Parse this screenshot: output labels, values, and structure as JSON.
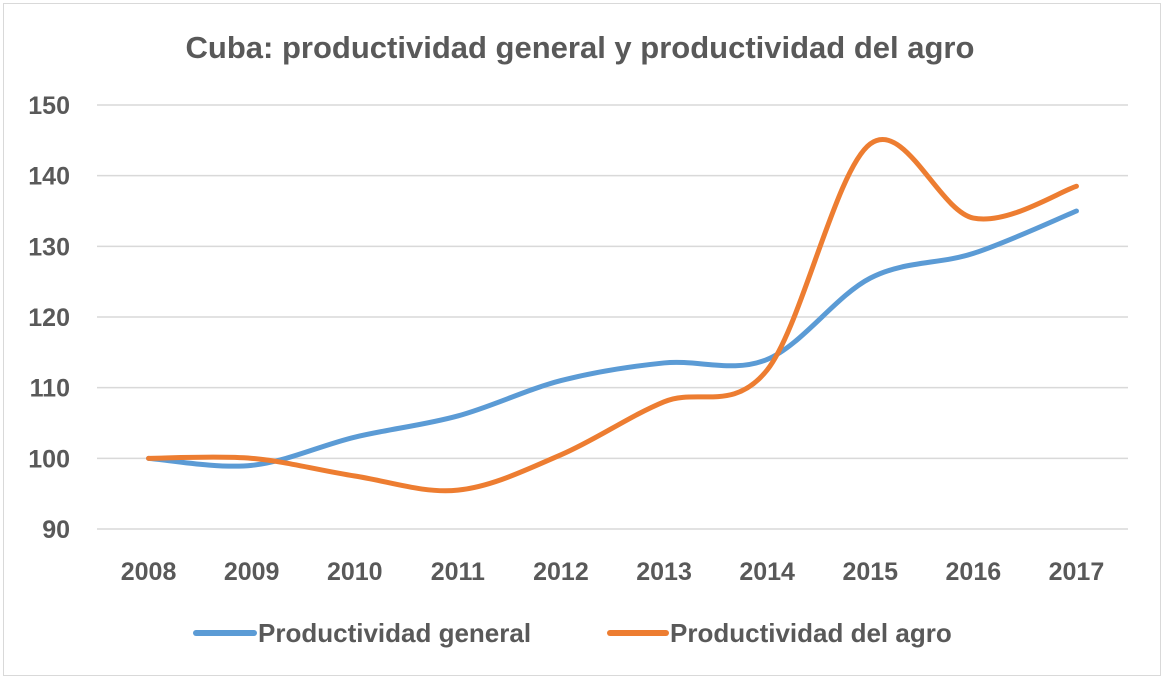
{
  "chart_data": {
    "type": "line",
    "title": "Cuba: productividad general y productividad del agro",
    "xlabel": "",
    "ylabel": "",
    "categories": [
      "2008",
      "2009",
      "2010",
      "2011",
      "2012",
      "2013",
      "2014",
      "2015",
      "2016",
      "2017"
    ],
    "ylim": [
      90,
      150
    ],
    "yticks": [
      90,
      100,
      110,
      120,
      130,
      140,
      150
    ],
    "grid": true,
    "smooth": true,
    "legend_position": "bottom",
    "series": [
      {
        "name": "Productividad general",
        "color": "#5b9bd5",
        "values": [
          100,
          99,
          103,
          106,
          111,
          113.5,
          114,
          125.5,
          129,
          135
        ]
      },
      {
        "name": "Productividad del agro",
        "color": "#ed7d31",
        "values": [
          100,
          100,
          97.5,
          95.5,
          100.5,
          108,
          112.5,
          144.5,
          134,
          138.5
        ]
      }
    ]
  }
}
